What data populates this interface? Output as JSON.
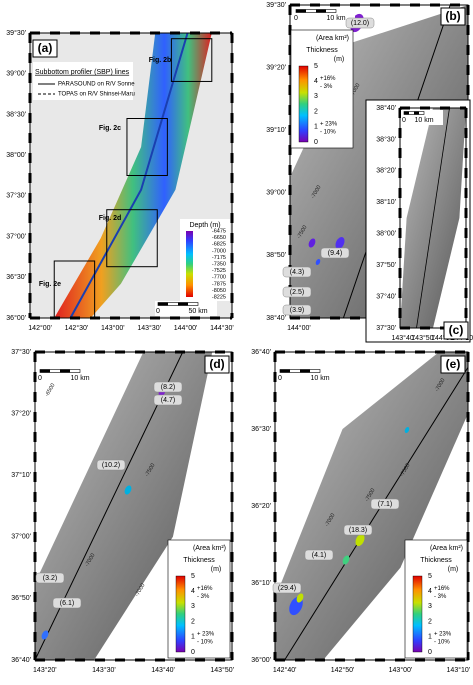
{
  "panel_a": {
    "label": "(a)",
    "legend_title": "Subbottom profiler (SBP) lines",
    "legend_items": [
      "PARASOUND on R/V Sonne",
      "TOPAS on R/V Shinsei-Maru"
    ],
    "figure_refs": [
      "Fig. 2b",
      "Fig. 2c",
      "Fig. 2d",
      "Fig. 2e"
    ],
    "depth_title": "Depth (m)",
    "depth_labels": [
      "-6475",
      "-6650",
      "-6825",
      "-7000",
      "-7175",
      "-7350",
      "-7525",
      "-7700",
      "-7875",
      "-8050",
      "-8225"
    ],
    "scale": [
      "0",
      "50 km"
    ],
    "lat_labels": [
      "39°30'",
      "39°00'",
      "38°30'",
      "38°00'",
      "37°30'",
      "37°00'",
      "36°30'",
      "36°00'"
    ],
    "lon_labels": [
      "142°00'",
      "142°30'",
      "143°00'",
      "143°30'",
      "144°00'",
      "144°30'"
    ]
  },
  "panel_b": {
    "label": "(b)",
    "scale": [
      "0",
      "10 km"
    ],
    "areas": [
      "(12.0)",
      "(9.4)",
      "(4.3)",
      "(2.5)",
      "(3.9)"
    ],
    "contours": [
      "-7500",
      "-7000",
      "-6500",
      "-7000"
    ],
    "legend": {
      "area_title": "(Area km²)",
      "title": "Thickness",
      "unit": "(m)",
      "ticks": [
        "0",
        "1",
        "2",
        "3",
        "4",
        "5"
      ],
      "upper_plus": "+16%",
      "upper_minus": "- 3%",
      "lower_plus": "+ 23%",
      "lower_minus": "- 10%"
    },
    "lat_labels": [
      "39°30'",
      "39°20'",
      "39°10'",
      "39°00'",
      "38°50'",
      "38°40'"
    ],
    "lon_labels": [
      "144°00'",
      "144°10'"
    ]
  },
  "panel_c": {
    "label": "(c)",
    "scale": [
      "0",
      "10 km"
    ],
    "lat_labels": [
      "38°40'",
      "38°30'",
      "38°20'",
      "38°10'",
      "38°00'",
      "37°50'",
      "37°40'",
      "37°30'"
    ],
    "lon_labels": [
      "143°40'",
      "143°50'",
      "144°00'",
      "144°10'"
    ]
  },
  "panel_d": {
    "label": "(d)",
    "scale": [
      "0",
      "10 km"
    ],
    "areas": [
      "(8.2)",
      "(4.7)",
      "(10.2)",
      "(3.2)",
      "(6.1)"
    ],
    "contours": [
      "-6500",
      "-7500",
      "-7000",
      "-7000"
    ],
    "legend": {
      "area_title": "(Area km²)",
      "title": "Thickness",
      "unit": "(m)",
      "ticks": [
        "0",
        "1",
        "2",
        "3",
        "4",
        "5"
      ],
      "upper_plus": "+16%",
      "upper_minus": "- 3%",
      "lower_plus": "+ 23%",
      "lower_minus": "- 10%"
    },
    "lat_labels": [
      "37°30'",
      "37°20'",
      "37°10'",
      "37°00'",
      "36°50'",
      "36°40'"
    ],
    "lon_labels": [
      "143°20'",
      "143°30'",
      "143°40'",
      "143°50'"
    ]
  },
  "panel_e": {
    "label": "(e)",
    "scale": [
      "0",
      "10 km"
    ],
    "areas": [
      "(7.1)",
      "(18.3)",
      "(4.1)",
      "(29.4)"
    ],
    "contours": [
      "-7000",
      "-7500",
      "-7500",
      "-7000"
    ],
    "legend": {
      "area_title": "(Area km²)",
      "title": "Thickness",
      "unit": "(m)",
      "ticks": [
        "0",
        "1",
        "2",
        "3",
        "4",
        "5"
      ],
      "upper_plus": "+16%",
      "upper_minus": "- 3%",
      "lower_plus": "+ 23%",
      "lower_minus": "- 10%"
    },
    "lat_labels": [
      "36°40'",
      "36°30'",
      "36°20'",
      "36°10'",
      "36°00'"
    ],
    "lon_labels": [
      "142°40'",
      "142°50'",
      "143°00'",
      "143°10'"
    ]
  }
}
